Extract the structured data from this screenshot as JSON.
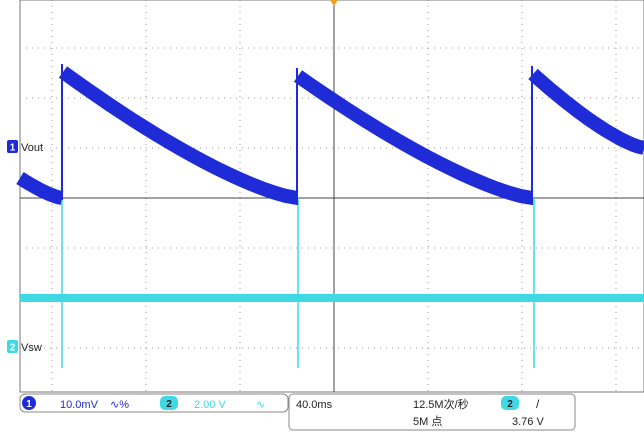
{
  "chart_data": {
    "type": "line",
    "title": "",
    "xlabel": "",
    "ylabel": "",
    "x_divisions": 10,
    "y_divisions": 8,
    "time_per_div_ms": 40.0,
    "grid": true,
    "series": [
      {
        "name": "Vout",
        "channel": "1",
        "color": "#1f2bd6",
        "scale": "10.0mV",
        "coupling": "∿%",
        "marker_label": "Vout",
        "div_offset": -1.3,
        "ripple_div": [
          {
            "t_div": 0.0,
            "v_div": -0.6
          },
          {
            "t_div": 1.0,
            "v_div": -1.1
          },
          {
            "t_div": 1.0,
            "v_div": 3.3
          },
          {
            "t_div": 6.5,
            "v_div": -0.9
          },
          {
            "t_div": 6.5,
            "v_div": 2.9
          },
          {
            "t_div": 12.1,
            "v_div": -0.9
          },
          {
            "t_div": 12.1,
            "v_div": 3.0
          },
          {
            "t_div": 14.5,
            "v_div": 1.3
          }
        ]
      },
      {
        "name": "Vsw",
        "channel": "2",
        "color": "#3fd9e6",
        "scale": "2.00 V",
        "coupling": "∿",
        "marker_label": "Vsw",
        "level_div": 1.3,
        "spike_t_div": [
          1.0,
          6.5,
          12.1
        ]
      }
    ]
  },
  "status_bar": {
    "ch1": {
      "badge": "1",
      "scale": "10.0mV",
      "coupling": "∿%"
    },
    "ch2": {
      "badge": "2",
      "scale": "2.00 V",
      "coupling": "∿"
    },
    "timebase": "40.0ms",
    "sample_rate": "12.5M次/秒",
    "record_length": "5M 点",
    "trigger": {
      "badge": "2",
      "slope": "/",
      "level": "3.76 V"
    }
  },
  "colors": {
    "ch1": "#1f2bd6",
    "ch2": "#3fd9e6",
    "grid_dot": "#9a9a9a",
    "frame": "#444444",
    "trigger_marker": "#f0a020"
  }
}
